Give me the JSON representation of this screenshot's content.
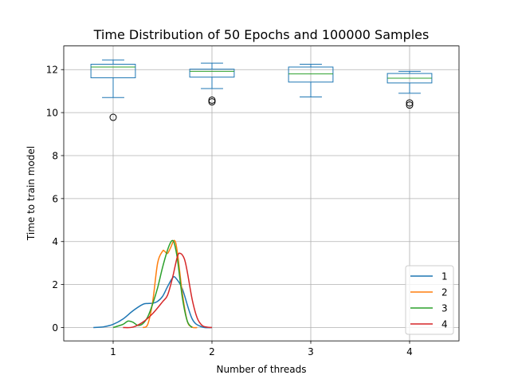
{
  "chart_data": {
    "type": "boxplot+kde",
    "title": "Time Distribution of 50 Epochs and 100000 Samples",
    "xlabel": "Number of threads",
    "ylabel": "Time to train model",
    "xlim": [
      0.5,
      4.5
    ],
    "ylim": [
      -0.62,
      13.1
    ],
    "xticks": [
      1,
      2,
      3,
      4
    ],
    "yticks": [
      0,
      2,
      4,
      6,
      8,
      10,
      12
    ],
    "grid": true,
    "legend_position": "lower-right",
    "colors": {
      "box": "#1f77b4",
      "median": "#2ca02c",
      "outlier": "#000000",
      "series": [
        "#1f77b4",
        "#ff7f0e",
        "#2ca02c",
        "#d62728"
      ]
    },
    "boxes": [
      {
        "position": 1,
        "whisker_low": 10.7,
        "q1": 11.62,
        "median": 12.12,
        "q3": 12.25,
        "whisker_high": 12.45,
        "outliers": [
          9.78
        ]
      },
      {
        "position": 2,
        "whisker_low": 11.12,
        "q1": 11.65,
        "median": 11.92,
        "q3": 12.02,
        "whisker_high": 12.3,
        "outliers": [
          10.5,
          10.58
        ]
      },
      {
        "position": 3,
        "whisker_low": 10.73,
        "q1": 11.42,
        "median": 11.8,
        "q3": 12.12,
        "whisker_high": 12.25,
        "outliers": []
      },
      {
        "position": 4,
        "whisker_low": 10.9,
        "q1": 11.38,
        "median": 11.6,
        "q3": 11.82,
        "whisker_high": 11.92,
        "outliers": [
          10.35,
          10.45
        ]
      }
    ],
    "series": [
      {
        "name": "1",
        "x": [
          0.8,
          0.9,
          1.0,
          1.1,
          1.2,
          1.3,
          1.35,
          1.4,
          1.45,
          1.5,
          1.55,
          1.6,
          1.63,
          1.7,
          1.8,
          1.9,
          2.0
        ],
        "y": [
          0.0,
          0.03,
          0.15,
          0.4,
          0.78,
          1.08,
          1.12,
          1.13,
          1.22,
          1.45,
          1.9,
          2.3,
          2.32,
          1.8,
          0.4,
          0.03,
          0.0
        ]
      },
      {
        "name": "2",
        "x": [
          1.3,
          1.35,
          1.4,
          1.45,
          1.5,
          1.52,
          1.55,
          1.58,
          1.62,
          1.65,
          1.7,
          1.75,
          1.8,
          1.85
        ],
        "y": [
          0.0,
          0.15,
          1.2,
          3.0,
          3.55,
          3.55,
          3.45,
          3.7,
          4.05,
          3.5,
          1.6,
          0.3,
          0.02,
          0.0
        ]
      },
      {
        "name": "3",
        "x": [
          1.0,
          1.1,
          1.15,
          1.2,
          1.25,
          1.3,
          1.35,
          1.4,
          1.45,
          1.5,
          1.55,
          1.58,
          1.6,
          1.62,
          1.65,
          1.7,
          1.75,
          1.8
        ],
        "y": [
          0.0,
          0.15,
          0.3,
          0.25,
          0.1,
          0.18,
          0.5,
          1.1,
          1.85,
          2.8,
          3.6,
          3.95,
          4.05,
          3.9,
          3.2,
          1.4,
          0.3,
          0.0
        ]
      },
      {
        "name": "4",
        "x": [
          1.1,
          1.2,
          1.3,
          1.4,
          1.5,
          1.55,
          1.6,
          1.65,
          1.68,
          1.72,
          1.75,
          1.8,
          1.85,
          1.9,
          1.95,
          2.0
        ],
        "y": [
          0.0,
          0.02,
          0.25,
          0.65,
          1.2,
          1.5,
          2.3,
          3.3,
          3.45,
          3.2,
          2.6,
          1.3,
          0.45,
          0.1,
          0.02,
          0.0
        ]
      }
    ]
  }
}
